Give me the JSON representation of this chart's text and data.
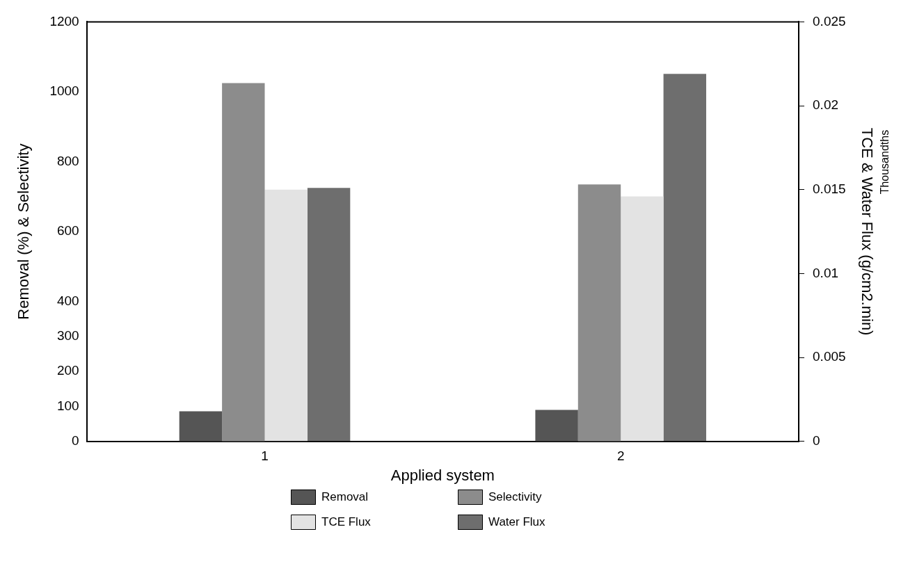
{
  "chart_data": {
    "type": "bar",
    "xlabel": "Applied system",
    "ylabel": "Removal (%) & Selectivity",
    "y2label": "TCE & Water Flux (g/cm2.min)",
    "annotations": [
      "Thousandths"
    ],
    "categories": [
      "1",
      "2"
    ],
    "series": [
      {
        "name": "Removal",
        "color": "#555555",
        "values": [
          86,
          90
        ]
      },
      {
        "name": "Selectivity",
        "color": "#8c8c8c",
        "values": [
          1025,
          735
        ]
      },
      {
        "name": "TCE Flux",
        "color": "#e3e3e3",
        "values": [
          0.015,
          0.0146
        ],
        "axis": "y2"
      },
      {
        "name": "Water Flux",
        "color": "#6e6e6e",
        "values": [
          0.0151,
          0.0219
        ],
        "axis": "y2"
      }
    ],
    "ylim": [
      0,
      1200
    ],
    "yticks": [
      0,
      100,
      200,
      300,
      400,
      600,
      800,
      1000,
      1200
    ],
    "y2lim": [
      0,
      0.025
    ],
    "y2ticks": [
      0,
      0.005,
      0.01,
      0.015,
      0.02,
      0.025
    ],
    "grid": false,
    "legend": "bottom"
  }
}
